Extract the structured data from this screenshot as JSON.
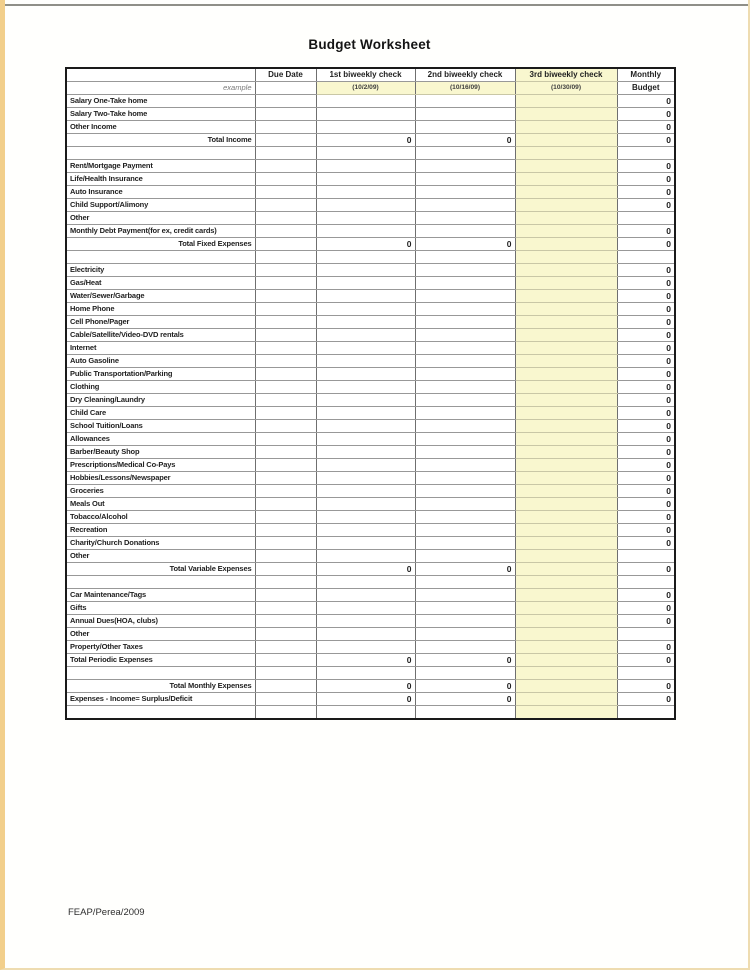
{
  "page": {
    "title": "Budget Worksheet",
    "footer": "FEAP/Perea/2009"
  },
  "colors": {
    "highlight": "#f9f7cf",
    "frame_tan": "#f2cf8b",
    "frame_tan_light": "#eedcb0"
  },
  "table": {
    "columns": [
      "",
      "Due Date",
      "1st biweekly check",
      "2nd biweekly check",
      "3rd biweekly check",
      "Monthly"
    ],
    "subheader": {
      "example": "example",
      "dates": [
        "(10/2/09)",
        "(10/16/09)",
        "(10/30/09)"
      ],
      "budget_label": "Budget"
    },
    "rows": [
      {
        "type": "item",
        "label": "Salary One-Take home",
        "budget": "0"
      },
      {
        "type": "item",
        "label": "Salary Two-Take home",
        "budget": "0"
      },
      {
        "type": "item",
        "label": "Other Income",
        "budget": "0"
      },
      {
        "type": "total",
        "align": "right",
        "label": "Total Income",
        "c1": "0",
        "c2": "0",
        "budget": "0"
      },
      {
        "type": "blank"
      },
      {
        "type": "item",
        "label": "Rent/Mortgage Payment",
        "budget": "0"
      },
      {
        "type": "item",
        "label": "Life/Health Insurance",
        "budget": "0"
      },
      {
        "type": "item",
        "label": "Auto Insurance",
        "budget": "0"
      },
      {
        "type": "item",
        "label": "Child Support/Alimony",
        "budget": "0"
      },
      {
        "type": "item",
        "label": "Other",
        "budget": ""
      },
      {
        "type": "item",
        "label": "Monthly Debt Payment(for ex, credit cards)",
        "budget": "0"
      },
      {
        "type": "total",
        "align": "right",
        "label": "Total Fixed Expenses",
        "c1": "0",
        "c2": "0",
        "budget": "0"
      },
      {
        "type": "blank"
      },
      {
        "type": "item",
        "label": "Electricity",
        "budget": "0"
      },
      {
        "type": "item",
        "label": "Gas/Heat",
        "budget": "0"
      },
      {
        "type": "item",
        "label": "Water/Sewer/Garbage",
        "budget": "0"
      },
      {
        "type": "item",
        "label": "Home Phone",
        "budget": "0"
      },
      {
        "type": "item",
        "label": "Cell Phone/Pager",
        "budget": "0"
      },
      {
        "type": "item",
        "label": "Cable/Satellite/Video-DVD rentals",
        "budget": "0"
      },
      {
        "type": "item",
        "label": "Internet",
        "budget": "0"
      },
      {
        "type": "item",
        "label": "Auto Gasoline",
        "budget": "0"
      },
      {
        "type": "item",
        "label": "Public Transportation/Parking",
        "budget": "0"
      },
      {
        "type": "item",
        "label": "Clothing",
        "budget": "0"
      },
      {
        "type": "item",
        "label": "Dry Cleaning/Laundry",
        "budget": "0"
      },
      {
        "type": "item",
        "label": "Child Care",
        "budget": "0"
      },
      {
        "type": "item",
        "label": "School Tuition/Loans",
        "budget": "0"
      },
      {
        "type": "item",
        "label": "Allowances",
        "budget": "0"
      },
      {
        "type": "item",
        "label": "Barber/Beauty Shop",
        "budget": "0"
      },
      {
        "type": "item",
        "label": "Prescriptions/Medical Co-Pays",
        "budget": "0"
      },
      {
        "type": "item",
        "label": "Hobbies/Lessons/Newspaper",
        "budget": "0"
      },
      {
        "type": "item",
        "label": "Groceries",
        "budget": "0"
      },
      {
        "type": "item",
        "label": "Meals Out",
        "budget": "0"
      },
      {
        "type": "item",
        "label": "Tobacco/Alcohol",
        "budget": "0"
      },
      {
        "type": "item",
        "label": "Recreation",
        "budget": "0"
      },
      {
        "type": "item",
        "label": "Charity/Church Donations",
        "budget": "0"
      },
      {
        "type": "item",
        "label": "Other",
        "budget": ""
      },
      {
        "type": "total",
        "align": "right",
        "label": "Total Variable Expenses",
        "c1": "0",
        "c2": "0",
        "budget": "0"
      },
      {
        "type": "blank"
      },
      {
        "type": "item",
        "label": "Car Maintenance/Tags",
        "budget": "0"
      },
      {
        "type": "item",
        "label": "Gifts",
        "budget": "0"
      },
      {
        "type": "item",
        "label": "Annual Dues(HOA, clubs)",
        "budget": "0"
      },
      {
        "type": "item",
        "label": "Other",
        "budget": ""
      },
      {
        "type": "item",
        "label": "Property/Other Taxes",
        "budget": "0"
      },
      {
        "type": "total",
        "align": "left",
        "label": "Total Periodic Expenses",
        "c1": "0",
        "c2": "0",
        "budget": "0"
      },
      {
        "type": "blank"
      },
      {
        "type": "total",
        "align": "right",
        "label": "Total Monthly Expenses",
        "c1": "0",
        "c2": "0",
        "budget": "0"
      },
      {
        "type": "total",
        "align": "left",
        "label": "Expenses - Income= Surplus/Deficit",
        "c1": "0",
        "c2": "0",
        "budget": "0"
      },
      {
        "type": "blank"
      }
    ]
  }
}
